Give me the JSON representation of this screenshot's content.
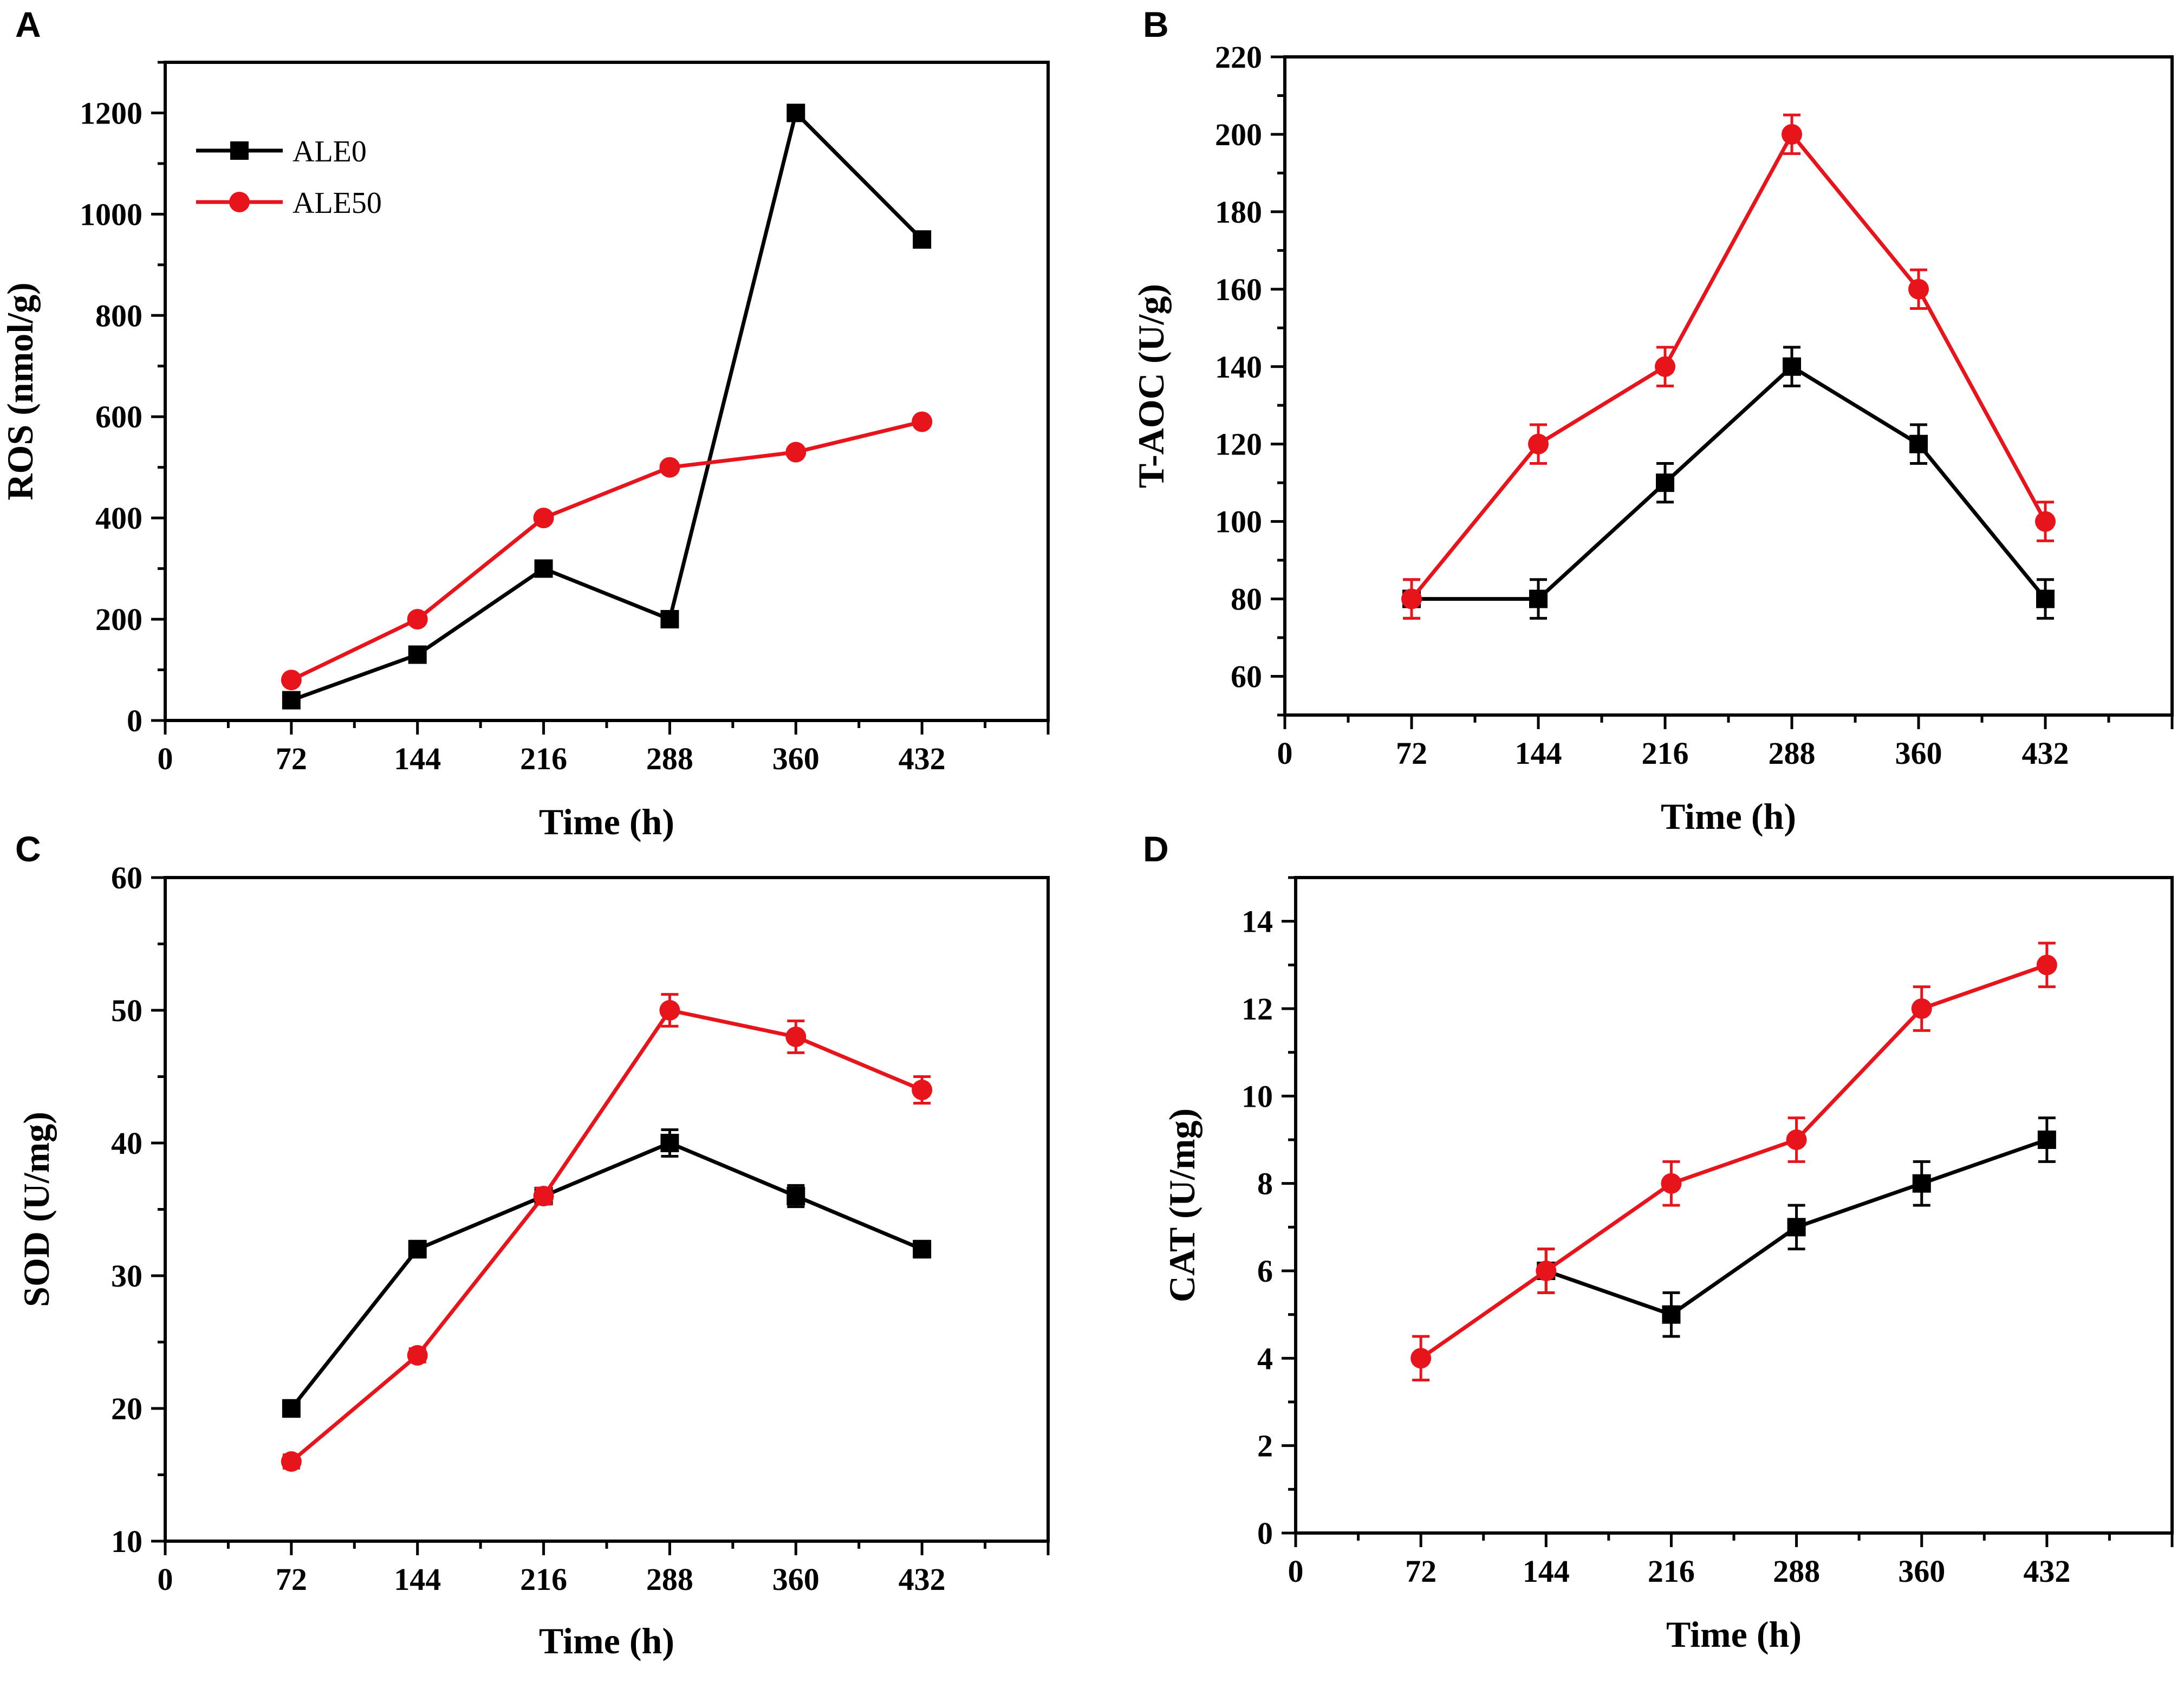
{
  "colors": {
    "ALE0": "#000000",
    "ALE50": "#e8141b"
  },
  "legend": [
    "ALE0",
    "ALE50"
  ],
  "chart_data": [
    {
      "panel": "A",
      "type": "line",
      "xlabel": "Time (h)",
      "ylabel": "ROS (nmol/g)",
      "xlim": [
        0,
        504
      ],
      "ylim": [
        0,
        1300
      ],
      "xticks": [
        0,
        72,
        144,
        216,
        288,
        360,
        432
      ],
      "yticks": [
        0,
        200,
        400,
        600,
        800,
        1000,
        1200
      ],
      "legend_position": "top-left",
      "series": [
        {
          "name": "ALE0",
          "marker": "square",
          "x": [
            72,
            144,
            216,
            288,
            360,
            432
          ],
          "y": [
            40,
            130,
            300,
            200,
            1200,
            950
          ],
          "err": []
        },
        {
          "name": "ALE50",
          "marker": "circle",
          "x": [
            72,
            144,
            216,
            288,
            360,
            432
          ],
          "y": [
            80,
            200,
            400,
            500,
            530,
            590
          ],
          "err": []
        }
      ]
    },
    {
      "panel": "B",
      "type": "line",
      "xlabel": "Time (h)",
      "ylabel": "T-AOC (U/g)",
      "xlim": [
        0,
        504
      ],
      "ylim": [
        50,
        220
      ],
      "xticks": [
        0,
        72,
        144,
        216,
        288,
        360,
        432
      ],
      "yticks": [
        60,
        80,
        100,
        120,
        140,
        160,
        180,
        200,
        220
      ],
      "series": [
        {
          "name": "ALE0",
          "marker": "square",
          "x": [
            72,
            144,
            216,
            288,
            360,
            432
          ],
          "y": [
            80,
            80,
            110,
            140,
            120,
            80
          ],
          "err": [
            5,
            5,
            5,
            5,
            5,
            5
          ]
        },
        {
          "name": "ALE50",
          "marker": "circle",
          "x": [
            72,
            144,
            216,
            288,
            360,
            432
          ],
          "y": [
            80,
            120,
            140,
            200,
            160,
            100
          ],
          "err": [
            5,
            5,
            5,
            5,
            5,
            5
          ]
        }
      ]
    },
    {
      "panel": "C",
      "type": "line",
      "xlabel": "Time (h)",
      "ylabel": "SOD (U/mg)",
      "xlim": [
        0,
        504
      ],
      "ylim": [
        10,
        60
      ],
      "xticks": [
        0,
        72,
        144,
        216,
        288,
        360,
        432
      ],
      "yticks": [
        10,
        20,
        30,
        40,
        50,
        60
      ],
      "series": [
        {
          "name": "ALE0",
          "marker": "square",
          "x": [
            72,
            144,
            216,
            288,
            360,
            432
          ],
          "y": [
            20,
            32,
            36,
            40,
            36,
            32
          ],
          "err": [
            0.6,
            0.6,
            0.6,
            1,
            0.8,
            0.6
          ]
        },
        {
          "name": "ALE50",
          "marker": "circle",
          "x": [
            72,
            144,
            216,
            288,
            360,
            432
          ],
          "y": [
            16,
            24,
            36,
            50,
            48,
            44
          ],
          "err": [
            0.5,
            0.5,
            0.6,
            1.2,
            1.2,
            1
          ]
        }
      ]
    },
    {
      "panel": "D",
      "type": "line",
      "xlabel": "Time (h)",
      "ylabel": "CAT (U/mg)",
      "xlim": [
        0,
        504
      ],
      "ylim": [
        0,
        15
      ],
      "xticks": [
        0,
        72,
        144,
        216,
        288,
        360,
        432
      ],
      "yticks": [
        0,
        2,
        4,
        6,
        8,
        10,
        12,
        14
      ],
      "series": [
        {
          "name": "ALE0",
          "marker": "square",
          "x": [
            144,
            216,
            288,
            360,
            432
          ],
          "y": [
            6,
            5,
            7,
            8,
            9
          ],
          "err": [
            0.5,
            0.5,
            0.5,
            0.5,
            0.5
          ]
        },
        {
          "name": "ALE50",
          "marker": "circle",
          "x": [
            72,
            144,
            216,
            288,
            360,
            432
          ],
          "y": [
            4,
            6,
            8,
            9,
            12,
            13
          ],
          "err": [
            0.5,
            0.5,
            0.5,
            0.5,
            0.5,
            0.5
          ]
        }
      ]
    }
  ]
}
